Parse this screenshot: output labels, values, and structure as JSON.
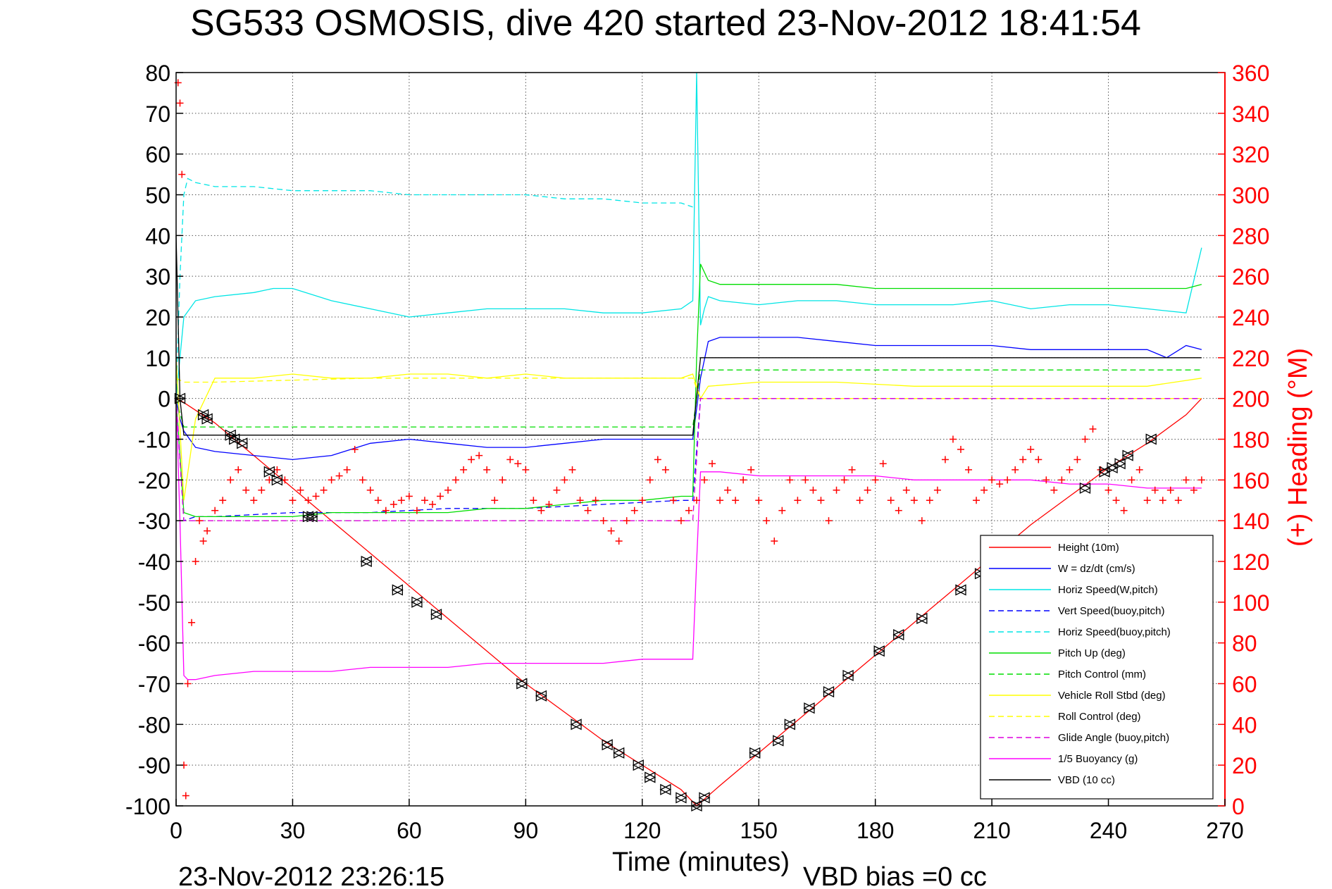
{
  "chart_data": {
    "type": "line",
    "title": "SG533 OSMOSIS, dive 420 started 23-Nov-2012 18:41:54",
    "xlabel": "Time (minutes)",
    "ylabel_right": "(+) Heading (°M)",
    "footer_left": "23-Nov-2012 23:26:15",
    "footer_right": "VBD bias =0 cc",
    "xlim": [
      0,
      270
    ],
    "ylim_left": [
      -100,
      80
    ],
    "ylim_right": [
      0,
      360
    ],
    "x_ticks": [
      0,
      30,
      60,
      90,
      120,
      150,
      180,
      210,
      240,
      270
    ],
    "y_ticks_left": [
      80,
      70,
      60,
      50,
      40,
      30,
      20,
      10,
      0,
      -10,
      -20,
      -30,
      -40,
      -50,
      -60,
      -70,
      -80,
      -90,
      -100
    ],
    "y_ticks_right": [
      360,
      340,
      320,
      300,
      280,
      260,
      240,
      220,
      200,
      180,
      160,
      140,
      120,
      100,
      80,
      60,
      40,
      20,
      0
    ],
    "grid": true,
    "legend_placement": "bottom-right",
    "colors": {
      "heading": "#ff0000",
      "axis_right": "#ff0000",
      "axis_left": "#000000"
    },
    "series": [
      {
        "name": "Height (10m)",
        "color": "#ff0000",
        "style": "solid",
        "x": [
          0,
          2,
          10,
          20,
          30,
          40,
          50,
          60,
          70,
          80,
          90,
          100,
          110,
          120,
          130,
          134,
          140,
          150,
          160,
          170,
          180,
          190,
          200,
          210,
          220,
          230,
          240,
          250,
          260,
          264
        ],
        "y": [
          0,
          -1,
          -6,
          -14,
          -22,
          -30,
          -38,
          -46,
          -54,
          -62,
          -70,
          -77,
          -84,
          -90,
          -96,
          -100,
          -95,
          -87,
          -79,
          -71,
          -63,
          -55,
          -47,
          -39,
          -31,
          -24,
          -17,
          -11,
          -4,
          0
        ]
      },
      {
        "name": "W = dz/dt (cm/s)",
        "color": "#0000ff",
        "style": "solid",
        "x": [
          0,
          1,
          2,
          5,
          10,
          20,
          30,
          40,
          50,
          60,
          70,
          80,
          90,
          100,
          110,
          120,
          130,
          133,
          135,
          137,
          140,
          150,
          160,
          170,
          180,
          190,
          200,
          210,
          220,
          230,
          240,
          250,
          255,
          260,
          264
        ],
        "y": [
          0,
          -5,
          -8,
          -12,
          -13,
          -14,
          -15,
          -14,
          -11,
          -10,
          -11,
          -12,
          -12,
          -11,
          -10,
          -10,
          -10,
          -10,
          5,
          14,
          15,
          15,
          15,
          14,
          13,
          13,
          13,
          13,
          12,
          12,
          12,
          12,
          10,
          13,
          12
        ]
      },
      {
        "name": "Horiz Speed(W,pitch)",
        "color": "#00e5e5",
        "style": "solid",
        "x": [
          0,
          1,
          2,
          5,
          10,
          20,
          25,
          30,
          40,
          50,
          60,
          70,
          80,
          90,
          100,
          110,
          120,
          130,
          133,
          134,
          135,
          136,
          137,
          140,
          150,
          160,
          170,
          180,
          190,
          200,
          210,
          220,
          230,
          240,
          250,
          260,
          264
        ],
        "y": [
          0,
          10,
          20,
          24,
          25,
          26,
          27,
          27,
          24,
          22,
          20,
          21,
          22,
          22,
          22,
          21,
          21,
          22,
          24,
          80,
          18,
          22,
          25,
          24,
          23,
          24,
          24,
          23,
          23,
          23,
          24,
          22,
          23,
          23,
          22,
          21,
          37
        ]
      },
      {
        "name": "Vert Speed(buoy,pitch)",
        "color": "#0000ff",
        "style": "dashed",
        "x": [
          0,
          2,
          5,
          10,
          30,
          50,
          70,
          90,
          110,
          130,
          133,
          135,
          137,
          160,
          190,
          220,
          250,
          264
        ],
        "y": [
          0,
          -30,
          -29,
          -29,
          -28,
          -28,
          -27,
          -27,
          -26,
          -25,
          -25,
          0,
          0,
          0,
          0,
          0,
          0,
          0
        ]
      },
      {
        "name": "Horiz Speed(buoy,pitch)",
        "color": "#00e5e5",
        "style": "dashed",
        "x": [
          0,
          1,
          2,
          3,
          5,
          10,
          20,
          30,
          40,
          50,
          60,
          70,
          80,
          90,
          100,
          110,
          120,
          130,
          133
        ],
        "y": [
          0,
          30,
          50,
          54,
          53,
          52,
          52,
          51,
          51,
          51,
          50,
          50,
          50,
          50,
          49,
          49,
          48,
          48,
          47
        ]
      },
      {
        "name": "Pitch Up (deg)",
        "color": "#00dd00",
        "style": "solid",
        "x": [
          0,
          2,
          5,
          10,
          20,
          30,
          40,
          50,
          60,
          70,
          80,
          90,
          100,
          110,
          120,
          130,
          133,
          134,
          135,
          137,
          140,
          150,
          160,
          170,
          180,
          190,
          200,
          210,
          220,
          230,
          240,
          250,
          260,
          264
        ],
        "y": [
          0,
          -28,
          -29,
          -29,
          -29,
          -29,
          -28,
          -28,
          -28,
          -28,
          -27,
          -27,
          -26,
          -25,
          -25,
          -24,
          -24,
          10,
          33,
          29,
          28,
          28,
          28,
          28,
          27,
          27,
          27,
          27,
          27,
          27,
          27,
          27,
          27,
          28
        ]
      },
      {
        "name": "Pitch Control (mm)",
        "color": "#00dd00",
        "style": "dashed",
        "x": [
          0,
          2,
          10,
          50,
          90,
          130,
          133,
          135,
          137,
          170,
          210,
          250,
          264
        ],
        "y": [
          0,
          -7,
          -7,
          -7,
          -7,
          -7,
          -7,
          7,
          7,
          7,
          7,
          7,
          7
        ]
      },
      {
        "name": "Vehicle Roll Stbd (deg)",
        "color": "#ffff00",
        "style": "solid",
        "x": [
          0,
          2,
          5,
          10,
          20,
          30,
          40,
          50,
          60,
          70,
          80,
          90,
          100,
          110,
          120,
          130,
          133,
          135,
          137,
          150,
          170,
          190,
          210,
          230,
          250,
          264
        ],
        "y": [
          10,
          -25,
          -5,
          5,
          5,
          6,
          5,
          5,
          6,
          6,
          5,
          6,
          5,
          5,
          5,
          5,
          6,
          0,
          3,
          4,
          4,
          3,
          3,
          3,
          3,
          5
        ]
      },
      {
        "name": "Roll Control (deg)",
        "color": "#ffff00",
        "style": "dashed",
        "x": [
          0,
          2,
          10,
          50,
          90,
          130,
          133,
          135,
          137,
          170,
          210,
          250,
          264
        ],
        "y": [
          5,
          4,
          4,
          5,
          5,
          5,
          5,
          0,
          0,
          0,
          0,
          0,
          0
        ]
      },
      {
        "name": "Glide Angle (buoy,pitch)",
        "color": "#dd00dd",
        "style": "dashed",
        "x": [
          0,
          2,
          10,
          30,
          50,
          70,
          90,
          110,
          130,
          133,
          135,
          137,
          170,
          210,
          250,
          264
        ],
        "y": [
          0,
          -30,
          -30,
          -30,
          -30,
          -30,
          -30,
          -30,
          -30,
          -30,
          0,
          0,
          0,
          0,
          0,
          0
        ]
      },
      {
        "name": "1/5 Buoyancy (g)",
        "color": "#ff00ff",
        "style": "solid",
        "x": [
          0,
          1,
          2,
          3,
          5,
          10,
          20,
          30,
          40,
          50,
          60,
          70,
          80,
          90,
          100,
          110,
          120,
          130,
          133,
          134,
          135,
          137,
          140,
          150,
          160,
          170,
          180,
          190,
          200,
          210,
          220,
          230,
          240,
          250,
          260,
          264
        ],
        "y": [
          0,
          -30,
          -68,
          -69,
          -69,
          -68,
          -67,
          -67,
          -67,
          -66,
          -66,
          -66,
          -65,
          -65,
          -65,
          -65,
          -64,
          -64,
          -64,
          -40,
          -18,
          -18,
          -18,
          -19,
          -19,
          -19,
          -19,
          -20,
          -20,
          -20,
          -20,
          -21,
          -21,
          -22,
          -22,
          -22
        ]
      },
      {
        "name": "VBD (10 cc)",
        "color": "#000000",
        "style": "solid",
        "x": [
          0,
          1,
          2,
          5,
          10,
          30,
          50,
          70,
          90,
          110,
          130,
          133,
          135,
          137,
          150,
          170,
          190,
          210,
          230,
          250,
          260,
          264
        ],
        "y": [
          40,
          0,
          -9,
          -9,
          -9,
          -9,
          -9,
          -9,
          -9,
          -9,
          -9,
          -9,
          10,
          10,
          10,
          10,
          10,
          10,
          10,
          10,
          10,
          10
        ]
      }
    ],
    "heading": {
      "name": "(+) Heading",
      "marker": "+",
      "color": "#ff0000",
      "x": [
        0.5,
        1,
        1.5,
        2,
        2.5,
        3,
        4,
        5,
        6,
        7,
        8,
        10,
        12,
        14,
        16,
        18,
        20,
        22,
        24,
        26,
        28,
        30,
        32,
        34,
        36,
        38,
        40,
        42,
        44,
        46,
        48,
        50,
        52,
        54,
        56,
        58,
        60,
        62,
        64,
        66,
        68,
        70,
        72,
        74,
        76,
        78,
        80,
        82,
        84,
        86,
        88,
        90,
        92,
        94,
        96,
        98,
        100,
        102,
        104,
        106,
        108,
        110,
        112,
        114,
        116,
        118,
        120,
        122,
        124,
        126,
        128,
        130,
        132,
        134,
        136,
        138,
        140,
        142,
        144,
        146,
        148,
        150,
        152,
        154,
        156,
        158,
        160,
        162,
        164,
        166,
        168,
        170,
        172,
        174,
        176,
        178,
        180,
        182,
        184,
        186,
        188,
        190,
        192,
        194,
        196,
        198,
        200,
        202,
        204,
        206,
        208,
        210,
        212,
        214,
        216,
        218,
        220,
        222,
        224,
        226,
        228,
        230,
        232,
        234,
        236,
        238,
        240,
        242,
        244,
        246,
        248,
        250,
        252,
        254,
        256,
        258,
        260,
        262,
        264
      ],
      "y": [
        355,
        345,
        310,
        20,
        5,
        60,
        90,
        120,
        140,
        130,
        135,
        145,
        150,
        160,
        165,
        155,
        150,
        155,
        160,
        165,
        160,
        150,
        155,
        150,
        152,
        155,
        160,
        162,
        165,
        175,
        160,
        155,
        150,
        145,
        148,
        150,
        152,
        145,
        150,
        148,
        152,
        155,
        160,
        165,
        170,
        172,
        165,
        150,
        160,
        170,
        168,
        165,
        150,
        145,
        148,
        155,
        160,
        165,
        150,
        145,
        150,
        140,
        135,
        130,
        140,
        145,
        150,
        160,
        170,
        165,
        150,
        140,
        145,
        150,
        160,
        168,
        150,
        155,
        150,
        160,
        165,
        150,
        140,
        130,
        145,
        160,
        150,
        160,
        155,
        150,
        140,
        155,
        160,
        165,
        150,
        155,
        160,
        168,
        150,
        145,
        155,
        150,
        140,
        150,
        155,
        170,
        180,
        175,
        165,
        150,
        155,
        160,
        158,
        160,
        165,
        170,
        175,
        170,
        160,
        155,
        160,
        165,
        170,
        180,
        185,
        165,
        155,
        150,
        145,
        160,
        165,
        150,
        155,
        150,
        155,
        150,
        160,
        155,
        160
      ]
    },
    "markers": {
      "marker": "triangles (up and down overlaid)",
      "color": "#000000",
      "x": [
        1,
        7,
        8,
        14,
        15,
        17,
        24,
        26,
        34,
        35,
        49,
        57,
        62,
        67,
        89,
        94,
        103,
        111,
        114,
        119,
        122,
        126,
        130,
        134,
        136,
        149,
        155,
        158,
        163,
        168,
        173,
        181,
        186,
        192,
        202,
        207,
        234,
        239,
        241,
        243,
        245,
        251
      ],
      "y": [
        0,
        -4,
        -5,
        -9,
        -10,
        -11,
        -18,
        -20,
        -29,
        -29,
        -40,
        -47,
        -50,
        -53,
        -70,
        -73,
        -80,
        -85,
        -87,
        -90,
        -93,
        -96,
        -98,
        -100,
        -98,
        -87,
        -84,
        -80,
        -76,
        -72,
        -68,
        -62,
        -58,
        -54,
        -47,
        -43,
        -22,
        -18,
        -17,
        -16,
        -14,
        -10
      ]
    }
  }
}
